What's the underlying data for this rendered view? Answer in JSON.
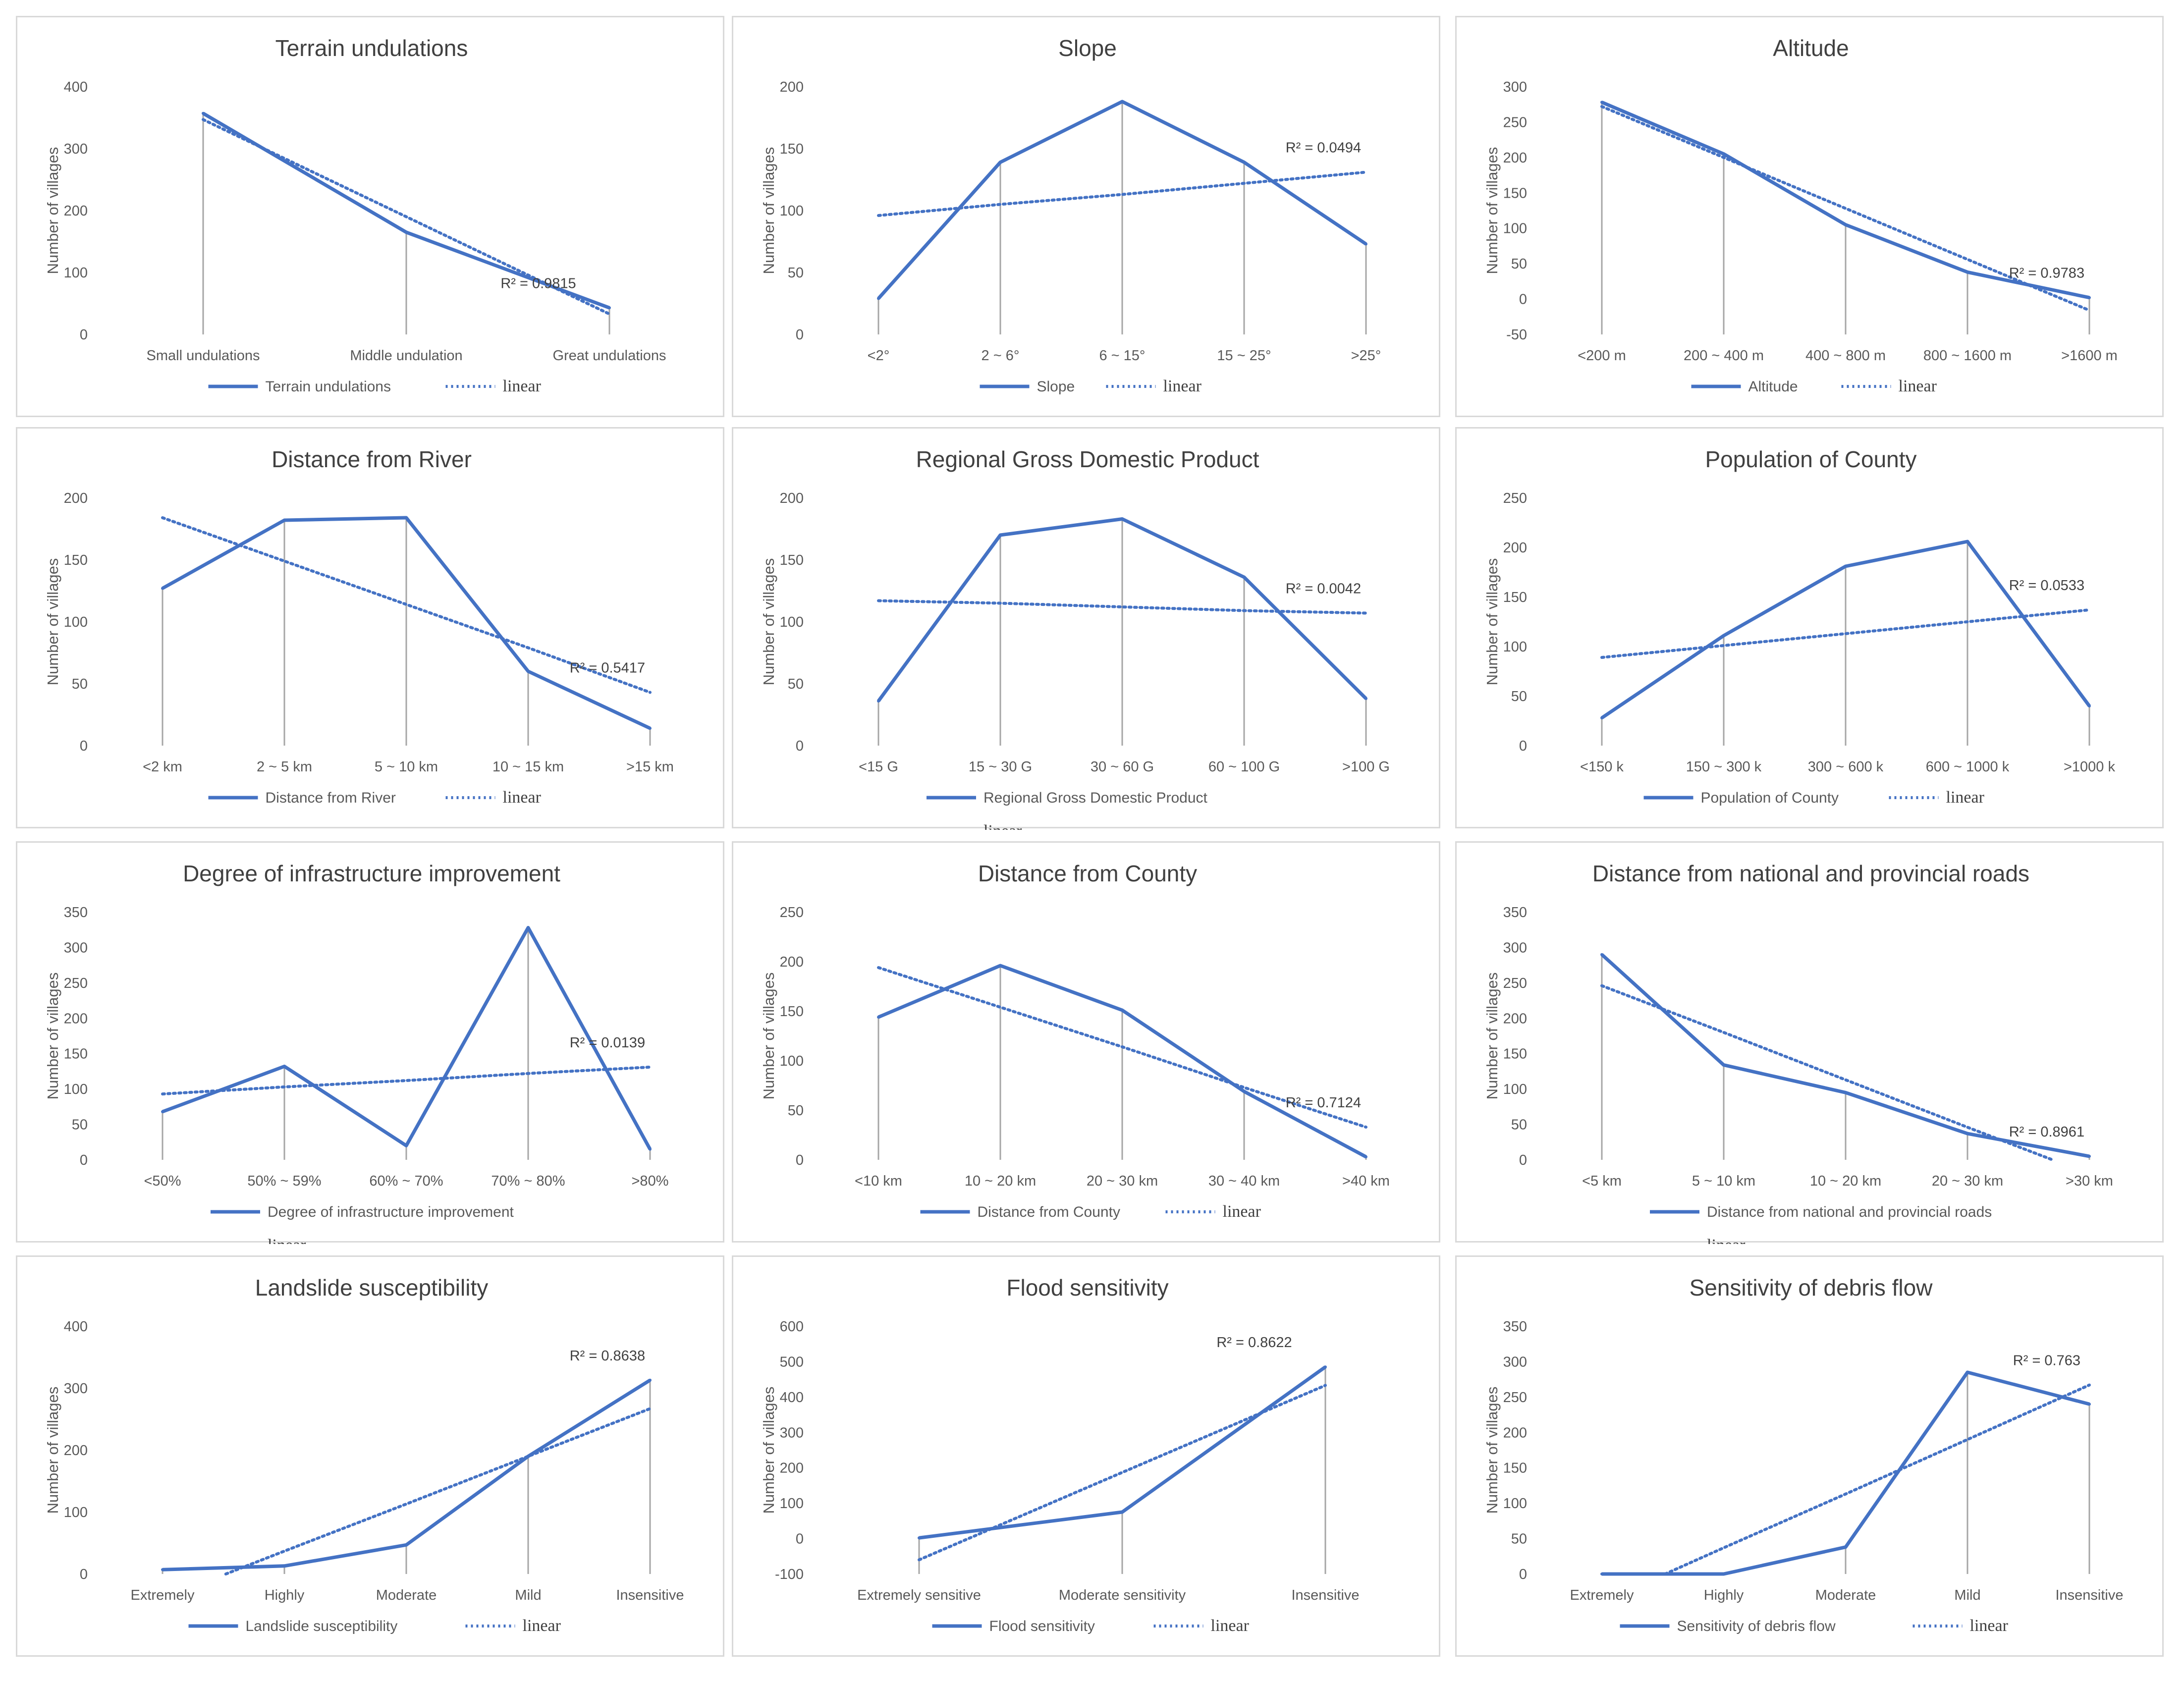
{
  "colors": {
    "series": "#4472c4",
    "drop": "#a6a6a6",
    "border": "#d9d9d9"
  },
  "charts": [
    {
      "title": "Terrain undulations",
      "ylabel": "Number of villages",
      "categories": [
        "Small undulations",
        "Middle undulation",
        "Great undulations"
      ],
      "values": [
        357,
        165,
        43
      ],
      "trend": [
        347,
        190,
        33
      ],
      "ymin": 0,
      "ymax": 400,
      "ystep": 100,
      "r2": "R² = 0.9815",
      "r2_at": [
        2.0,
        0.9815
      ],
      "legend": {
        "series": "Terrain undulations",
        "trend": "linear",
        "rows": 1
      }
    },
    {
      "title": "Slope",
      "ylabel": "Number of villages",
      "categories": [
        "<2°",
        "2 ~ 6°",
        "6 ~ 15°",
        "15 ~ 25°",
        ">25°"
      ],
      "values": [
        29,
        139,
        188,
        139,
        73
      ],
      "trend": [
        96,
        105,
        113,
        122,
        131
      ],
      "ymin": 0,
      "ymax": 200,
      "ystep": 50,
      "r2": "R² = 0.0494",
      "legend": {
        "series": "Slope",
        "trend": "linear",
        "rows": 1
      }
    },
    {
      "title": "Altitude",
      "ylabel": "Number of villages",
      "categories": [
        "<200 m",
        "200 ~ 400 m",
        "400 ~ 800 m",
        "800 ~ 1600 m",
        ">1600 m"
      ],
      "values": [
        278,
        205,
        105,
        38,
        2
      ],
      "trend": [
        272,
        200,
        128,
        56,
        -16
      ],
      "ymin": -50,
      "ymax": 300,
      "ystep": 50,
      "r2": "R² = 0.9783",
      "legend": {
        "series": "Altitude",
        "trend": "linear",
        "rows": 1
      }
    },
    {
      "title": "Distance from River",
      "ylabel": "Number of villages",
      "categories": [
        "<2 km",
        "2 ~ 5 km",
        "5 ~ 10 km",
        "10 ~ 15 km",
        ">15 km"
      ],
      "values": [
        127,
        182,
        184,
        60,
        14
      ],
      "trend": [
        184,
        149,
        114,
        79,
        43
      ],
      "ymin": 0,
      "ymax": 200,
      "ystep": 50,
      "r2": "R² = 0.5417",
      "legend": {
        "series": "Distance from River",
        "trend": "linear",
        "rows": 1
      }
    },
    {
      "title": "Regional Gross Domestic Product",
      "ylabel": "Number of villages",
      "categories": [
        "<15 G",
        "15 ~ 30 G",
        "30 ~ 60 G",
        "60 ~ 100 G",
        ">100 G"
      ],
      "values": [
        36,
        170,
        183,
        136,
        38
      ],
      "trend": [
        117,
        115,
        112,
        109,
        107
      ],
      "ymin": 0,
      "ymax": 200,
      "ystep": 50,
      "r2": "R² = 0.0042",
      "legend": {
        "series": "Regional Gross Domestic Product",
        "trend": "linear",
        "rows": 2
      }
    },
    {
      "title": "Population of County",
      "ylabel": "Number of villages",
      "categories": [
        "<150 k",
        "150 ~ 300 k",
        "300 ~ 600 k",
        "600 ~ 1000 k",
        ">1000 k"
      ],
      "values": [
        28,
        111,
        181,
        206,
        40
      ],
      "trend": [
        89,
        101,
        113,
        125,
        137
      ],
      "ymin": 0,
      "ymax": 250,
      "ystep": 50,
      "r2": "R² = 0.0533",
      "legend": {
        "series": "Population of County",
        "trend": "linear",
        "rows": 1
      }
    },
    {
      "title": "Degree of infrastructure improvement",
      "ylabel": "Number of villages",
      "categories": [
        "<50%",
        "50% ~ 59%",
        "60% ~ 70%",
        "70% ~ 80%",
        ">80%"
      ],
      "values": [
        68,
        132,
        20,
        328,
        15
      ],
      "trend": [
        93,
        103,
        112,
        122,
        131
      ],
      "ymin": 0,
      "ymax": 350,
      "ystep": 50,
      "r2": "R² = 0.0139",
      "legend": {
        "series": "Degree of infrastructure improvement",
        "trend": "linear",
        "rows": 2
      }
    },
    {
      "title": "Distance from County",
      "ylabel": "Number of villages",
      "categories": [
        "<10 km",
        "10 ~ 20 km",
        "20 ~ 30 km",
        "30 ~ 40 km",
        ">40 km"
      ],
      "values": [
        144,
        196,
        151,
        69,
        3
      ],
      "trend": [
        194,
        154,
        114,
        73,
        33
      ],
      "ymin": 0,
      "ymax": 250,
      "ystep": 50,
      "r2": "R² = 0.7124",
      "legend": {
        "series": "Distance from County",
        "trend": "linear",
        "rows": 1
      }
    },
    {
      "title": "Distance from national and provincial roads",
      "ylabel": "Number of villages",
      "categories": [
        "<5 km",
        "5 ~ 10 km",
        "10 ~ 20 km",
        "20 ~ 30 km",
        ">30 km"
      ],
      "values": [
        290,
        134,
        95,
        37,
        5
      ],
      "trend": [
        246,
        180,
        113,
        46,
        -20
      ],
      "ymin": 0,
      "ymax": 350,
      "ystep": 50,
      "r2": "R² = 0.8961",
      "legend": {
        "series": "Distance from national and provincial roads",
        "trend": "linear",
        "rows": 2
      }
    },
    {
      "title": "Landslide susceptibility",
      "ylabel": "Number of villages",
      "categories": [
        "Extremely",
        "Highly",
        "Moderate",
        "Mild",
        "Insensitive"
      ],
      "values": [
        7,
        13,
        47,
        190,
        313
      ],
      "trend": [
        -40,
        37,
        113,
        190,
        267
      ],
      "ymin": 0,
      "ymax": 400,
      "ystep": 100,
      "r2": "R² = 0.8638",
      "legend": {
        "series": "Landslide susceptibility",
        "trend": "linear",
        "rows": 1
      }
    },
    {
      "title": "Flood sensitivity",
      "ylabel": "Number of villages",
      "categories": [
        "Extremely sensitive",
        "Moderate sensitivity",
        "Insensitive"
      ],
      "values": [
        2,
        75,
        485
      ],
      "trend": [
        -60,
        187,
        433
      ],
      "ymin": -100,
      "ymax": 600,
      "ystep": 100,
      "r2": "R² = 0.8622",
      "legend": {
        "series": "Flood sensitivity",
        "trend": "linear",
        "rows": 1
      }
    },
    {
      "title": "Sensitivity of debris flow",
      "ylabel": "Number of villages",
      "categories": [
        "Extremely",
        "Highly",
        "Moderate",
        "Mild",
        "Insensitive"
      ],
      "values": [
        0,
        0,
        38,
        285,
        240
      ],
      "trend": [
        -40,
        37,
        113,
        190,
        267
      ],
      "ymin": 0,
      "ymax": 350,
      "ystep": 50,
      "r2": "R² = 0.763",
      "legend": {
        "series": "Sensitivity of debris flow",
        "trend": "linear",
        "rows": 1
      }
    }
  ],
  "chart_data": [
    {
      "type": "line",
      "title": "Terrain undulations",
      "ylabel": "Number of villages",
      "categories": [
        "Small undulations",
        "Middle undulation",
        "Great undulations"
      ],
      "series": [
        {
          "name": "Terrain undulations",
          "values": [
            357,
            165,
            43
          ]
        },
        {
          "name": "linear",
          "values": [
            347,
            190,
            33
          ]
        }
      ],
      "ylim": [
        0,
        400
      ],
      "annotation": "R² = 0.9815"
    },
    {
      "type": "line",
      "title": "Slope",
      "ylabel": "Number of villages",
      "categories": [
        "<2°",
        "2 ~ 6°",
        "6 ~ 15°",
        "15 ~ 25°",
        ">25°"
      ],
      "series": [
        {
          "name": "Slope",
          "values": [
            29,
            139,
            188,
            139,
            73
          ]
        },
        {
          "name": "linear",
          "values": [
            96,
            105,
            113,
            122,
            131
          ]
        }
      ],
      "ylim": [
        0,
        200
      ],
      "annotation": "R² = 0.0494"
    },
    {
      "type": "line",
      "title": "Altitude",
      "ylabel": "Number of villages",
      "categories": [
        "<200 m",
        "200 ~ 400 m",
        "400 ~ 800 m",
        "800 ~ 1600 m",
        ">1600 m"
      ],
      "series": [
        {
          "name": "Altitude",
          "values": [
            278,
            205,
            105,
            38,
            2
          ]
        },
        {
          "name": "linear",
          "values": [
            272,
            200,
            128,
            56,
            -16
          ]
        }
      ],
      "ylim": [
        -50,
        300
      ],
      "annotation": "R² = 0.9783"
    },
    {
      "type": "line",
      "title": "Distance from River",
      "ylabel": "Number of villages",
      "categories": [
        "<2 km",
        "2 ~ 5 km",
        "5 ~ 10 km",
        "10 ~ 15 km",
        ">15 km"
      ],
      "series": [
        {
          "name": "Distance from River",
          "values": [
            127,
            182,
            184,
            60,
            14
          ]
        },
        {
          "name": "linear",
          "values": [
            184,
            149,
            114,
            79,
            43
          ]
        }
      ],
      "ylim": [
        0,
        200
      ],
      "annotation": "R² = 0.5417"
    },
    {
      "type": "line",
      "title": "Regional Gross Domestic Product",
      "ylabel": "Number of villages",
      "categories": [
        "<15 G",
        "15 ~ 30 G",
        "30 ~ 60 G",
        "60 ~ 100 G",
        ">100 G"
      ],
      "series": [
        {
          "name": "Regional Gross Domestic Product",
          "values": [
            36,
            170,
            183,
            136,
            38
          ]
        },
        {
          "name": "linear",
          "values": [
            117,
            115,
            112,
            109,
            107
          ]
        }
      ],
      "ylim": [
        0,
        200
      ],
      "annotation": "R² = 0.0042"
    },
    {
      "type": "line",
      "title": "Population of County",
      "ylabel": "Number of villages",
      "categories": [
        "<150 k",
        "150 ~ 300 k",
        "300 ~ 600 k",
        "600 ~ 1000 k",
        ">1000 k"
      ],
      "series": [
        {
          "name": "Population of County",
          "values": [
            28,
            111,
            181,
            206,
            40
          ]
        },
        {
          "name": "linear",
          "values": [
            89,
            101,
            113,
            125,
            137
          ]
        }
      ],
      "ylim": [
        0,
        250
      ],
      "annotation": "R² = 0.0533"
    },
    {
      "type": "line",
      "title": "Degree of infrastructure improvement",
      "ylabel": "Number of villages",
      "categories": [
        "<50%",
        "50% ~ 59%",
        "60% ~ 70%",
        "70% ~ 80%",
        ">80%"
      ],
      "series": [
        {
          "name": "Degree of infrastructure improvement",
          "values": [
            68,
            132,
            20,
            328,
            15
          ]
        },
        {
          "name": "linear",
          "values": [
            93,
            103,
            112,
            122,
            131
          ]
        }
      ],
      "ylim": [
        0,
        350
      ],
      "annotation": "R² = 0.0139"
    },
    {
      "type": "line",
      "title": "Distance from County",
      "ylabel": "Number of villages",
      "categories": [
        "<10 km",
        "10 ~ 20 km",
        "20 ~ 30 km",
        "30 ~ 40 km",
        ">40 km"
      ],
      "series": [
        {
          "name": "Distance from County",
          "values": [
            144,
            196,
            151,
            69,
            3
          ]
        },
        {
          "name": "linear",
          "values": [
            194,
            154,
            114,
            73,
            33
          ]
        }
      ],
      "ylim": [
        0,
        250
      ],
      "annotation": "R² = 0.7124"
    },
    {
      "type": "line",
      "title": "Distance from national and provincial roads",
      "ylabel": "Number of villages",
      "categories": [
        "<5 km",
        "5 ~ 10 km",
        "10 ~ 20 km",
        "20 ~ 30 km",
        ">30 km"
      ],
      "series": [
        {
          "name": "Distance from national and provincial roads",
          "values": [
            290,
            134,
            95,
            37,
            5
          ]
        },
        {
          "name": "linear",
          "values": [
            246,
            180,
            113,
            46,
            -20
          ]
        }
      ],
      "ylim": [
        0,
        350
      ],
      "annotation": "R² = 0.8961"
    },
    {
      "type": "line",
      "title": "Landslide susceptibility",
      "ylabel": "Number of villages",
      "categories": [
        "Extremely",
        "Highly",
        "Moderate",
        "Mild",
        "Insensitive"
      ],
      "series": [
        {
          "name": "Landslide susceptibility",
          "values": [
            7,
            13,
            47,
            190,
            313
          ]
        },
        {
          "name": "linear",
          "values": [
            -40,
            37,
            113,
            190,
            267
          ]
        }
      ],
      "ylim": [
        0,
        400
      ],
      "annotation": "R² = 0.8638"
    },
    {
      "type": "line",
      "title": "Flood sensitivity",
      "ylabel": "Number of villages",
      "categories": [
        "Extremely sensitive",
        "Moderate sensitivity",
        "Insensitive"
      ],
      "series": [
        {
          "name": "Flood sensitivity",
          "values": [
            2,
            75,
            485
          ]
        },
        {
          "name": "linear",
          "values": [
            -60,
            187,
            433
          ]
        }
      ],
      "ylim": [
        -100,
        600
      ],
      "annotation": "R² = 0.8622"
    },
    {
      "type": "line",
      "title": "Sensitivity of debris flow",
      "ylabel": "Number of villages",
      "categories": [
        "Extremely",
        "Highly",
        "Moderate",
        "Mild",
        "Insensitive"
      ],
      "series": [
        {
          "name": "Sensitivity of debris flow",
          "values": [
            0,
            0,
            38,
            285,
            240
          ]
        },
        {
          "name": "linear",
          "values": [
            -40,
            37,
            113,
            190,
            267
          ]
        }
      ],
      "ylim": [
        0,
        350
      ],
      "annotation": "R² = 0.763"
    }
  ]
}
